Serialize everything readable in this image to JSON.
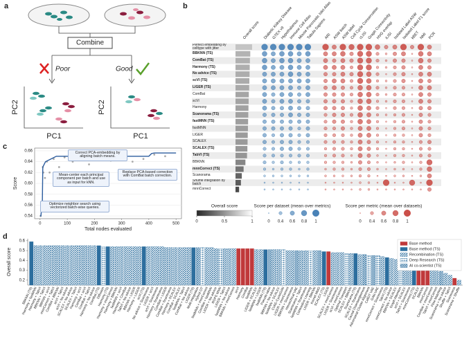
{
  "panel_labels": [
    "a",
    "b",
    "c",
    "d"
  ],
  "panel_a": {
    "combine": "Combine",
    "poor": "Poor",
    "good": "Good",
    "axis_labels": {
      "left_y": "PC2",
      "left_x": "PC1",
      "right_y": "PC2",
      "right_x": "PC1"
    }
  },
  "panel_b": {
    "column_headers": {
      "overall": "Overall score",
      "datasets": [
        "Diabetic Kidney Disease",
        "GTEX v9",
        "Hypothalamus",
        "Immune Cell Atlas",
        "Mouse Pancreatic Islet Atlas",
        "Tabula Sapiens"
      ],
      "metrics": [
        "ARI",
        "ASW batch",
        "ASW label",
        "Cell Cycle Conservation",
        "cLISI",
        "Graph Connectivity",
        "HVG overlap",
        "iLISI",
        "Isolated Label ASW",
        "Isolated Label F1 score",
        "kBET",
        "NMI",
        "PCR"
      ]
    },
    "dataset_color": "#3f7bb3",
    "metric_color": "#c8463f",
    "rows": [
      {
        "label": "Perfect embedding by celltype with jitter",
        "bold": false,
        "overall": 0.92,
        "datasets": [
          0.9,
          0.9,
          0.9,
          0.9,
          0.9,
          0.9
        ],
        "metrics": [
          0.9,
          0.6,
          0.9,
          0.8,
          0.9,
          0.9,
          0.7,
          0.5,
          0.6,
          0.9,
          0.5,
          0.9,
          0.6
        ]
      },
      {
        "label": "BBKNN (TS)",
        "bold": true,
        "overall": 0.82,
        "datasets": [
          0.7,
          0.6,
          0.7,
          0.7,
          0.6,
          0.7
        ],
        "metrics": [
          0.6,
          0.6,
          0.7,
          0.5,
          0.8,
          0.8,
          0.4,
          0.2,
          0.5,
          0.6,
          0.1,
          0.7,
          0.6
        ]
      },
      {
        "label": "ComBat (TS)",
        "bold": true,
        "overall": 0.8,
        "datasets": [
          0.7,
          0.6,
          0.7,
          0.7,
          0.6,
          0.6
        ],
        "metrics": [
          0.6,
          0.5,
          0.6,
          0.5,
          0.8,
          0.8,
          0.4,
          0.2,
          0.5,
          0.5,
          0.1,
          0.7,
          0.5
        ]
      },
      {
        "label": "Harmony (TS)",
        "bold": true,
        "overall": 0.79,
        "datasets": [
          0.7,
          0.6,
          0.6,
          0.7,
          0.6,
          0.6
        ],
        "metrics": [
          0.6,
          0.6,
          0.6,
          0.4,
          0.8,
          0.8,
          0.3,
          0.2,
          0.4,
          0.5,
          0.1,
          0.6,
          0.5
        ]
      },
      {
        "label": "No advice (TS)",
        "bold": true,
        "overall": 0.78,
        "datasets": [
          0.6,
          0.6,
          0.6,
          0.7,
          0.6,
          0.6
        ],
        "metrics": [
          0.5,
          0.5,
          0.6,
          0.5,
          0.8,
          0.7,
          0.4,
          0.1,
          0.4,
          0.5,
          0.1,
          0.6,
          0.6
        ]
      },
      {
        "label": "scVI (TS)",
        "bold": true,
        "overall": 0.77,
        "datasets": [
          0.6,
          0.6,
          0.6,
          0.6,
          0.6,
          0.6
        ],
        "metrics": [
          0.5,
          0.6,
          0.6,
          0.4,
          0.8,
          0.7,
          0.3,
          0.2,
          0.4,
          0.5,
          0.1,
          0.6,
          0.5
        ]
      },
      {
        "label": "LIGER (TS)",
        "bold": true,
        "overall": 0.76,
        "datasets": [
          0.6,
          0.6,
          0.6,
          0.6,
          0.5,
          0.6
        ],
        "metrics": [
          0.5,
          0.6,
          0.5,
          0.4,
          0.7,
          0.7,
          0.4,
          0.2,
          0.4,
          0.4,
          0.1,
          0.6,
          0.6
        ]
      },
      {
        "label": "ComBat",
        "bold": false,
        "overall": 0.74,
        "datasets": [
          0.6,
          0.5,
          0.6,
          0.6,
          0.5,
          0.6
        ],
        "metrics": [
          0.5,
          0.5,
          0.5,
          0.4,
          0.7,
          0.7,
          0.4,
          0.2,
          0.4,
          0.4,
          0.1,
          0.6,
          0.5
        ]
      },
      {
        "label": "scVI",
        "bold": false,
        "overall": 0.73,
        "datasets": [
          0.6,
          0.5,
          0.6,
          0.6,
          0.5,
          0.5
        ],
        "metrics": [
          0.5,
          0.5,
          0.5,
          0.3,
          0.7,
          0.7,
          0.3,
          0.2,
          0.4,
          0.4,
          0.1,
          0.6,
          0.5
        ]
      },
      {
        "label": "Harmony",
        "bold": false,
        "overall": 0.72,
        "datasets": [
          0.6,
          0.5,
          0.5,
          0.6,
          0.5,
          0.5
        ],
        "metrics": [
          0.5,
          0.5,
          0.5,
          0.3,
          0.7,
          0.6,
          0.4,
          0.1,
          0.4,
          0.4,
          0.1,
          0.5,
          0.5
        ]
      },
      {
        "label": "Scanorama (TS)",
        "bold": true,
        "overall": 0.71,
        "datasets": [
          0.5,
          0.5,
          0.5,
          0.6,
          0.5,
          0.5
        ],
        "metrics": [
          0.4,
          0.5,
          0.5,
          0.4,
          0.7,
          0.6,
          0.3,
          0.2,
          0.3,
          0.4,
          0.1,
          0.5,
          0.4
        ]
      },
      {
        "label": "fastMNN (TS)",
        "bold": true,
        "overall": 0.7,
        "datasets": [
          0.5,
          0.5,
          0.5,
          0.5,
          0.5,
          0.5
        ],
        "metrics": [
          0.4,
          0.5,
          0.5,
          0.3,
          0.7,
          0.6,
          0.3,
          0.1,
          0.3,
          0.4,
          0.1,
          0.5,
          0.4
        ]
      },
      {
        "label": "fastMNN",
        "bold": false,
        "overall": 0.69,
        "datasets": [
          0.5,
          0.5,
          0.5,
          0.5,
          0.4,
          0.5
        ],
        "metrics": [
          0.4,
          0.4,
          0.5,
          0.3,
          0.6,
          0.6,
          0.3,
          0.1,
          0.3,
          0.4,
          0.1,
          0.5,
          0.4
        ]
      },
      {
        "label": "LIGER",
        "bold": false,
        "overall": 0.68,
        "datasets": [
          0.5,
          0.4,
          0.5,
          0.5,
          0.4,
          0.5
        ],
        "metrics": [
          0.4,
          0.4,
          0.4,
          0.3,
          0.6,
          0.6,
          0.3,
          0.1,
          0.3,
          0.3,
          0.1,
          0.5,
          0.4
        ]
      },
      {
        "label": "SCALEX",
        "bold": false,
        "overall": 0.67,
        "datasets": [
          0.5,
          0.4,
          0.5,
          0.5,
          0.4,
          0.4
        ],
        "metrics": [
          0.4,
          0.4,
          0.4,
          0.3,
          0.6,
          0.5,
          0.3,
          0.1,
          0.3,
          0.3,
          0.1,
          0.4,
          0.5
        ]
      },
      {
        "label": "SCALEX (TS)",
        "bold": true,
        "overall": 0.66,
        "datasets": [
          0.4,
          0.4,
          0.5,
          0.5,
          0.4,
          0.4
        ],
        "metrics": [
          0.3,
          0.4,
          0.4,
          0.3,
          0.6,
          0.5,
          0.3,
          0.1,
          0.3,
          0.3,
          0.1,
          0.4,
          0.4
        ]
      },
      {
        "label": "TabVI (TS)",
        "bold": true,
        "overall": 0.64,
        "datasets": [
          0.4,
          0.4,
          0.4,
          0.4,
          0.4,
          0.4
        ],
        "metrics": [
          0.3,
          0.4,
          0.4,
          0.2,
          0.6,
          0.5,
          0.2,
          0.1,
          0.3,
          0.3,
          0.1,
          0.4,
          0.4
        ]
      },
      {
        "label": "BBKNN",
        "bold": false,
        "overall": 0.55,
        "datasets": [
          0.4,
          0.3,
          0.4,
          0.3,
          0.3,
          0.3
        ],
        "metrics": [
          0.3,
          0.3,
          0.3,
          0.2,
          0.5,
          0.4,
          0.2,
          0.1,
          0.2,
          0.3,
          0.1,
          0.3,
          0.8
        ]
      },
      {
        "label": "mnnCorrect (TS)",
        "bold": true,
        "overall": 0.45,
        "datasets": [
          0.3,
          0.2,
          0.3,
          0.3,
          0.2,
          0.3
        ],
        "metrics": [
          0.2,
          0.3,
          0.3,
          0.2,
          0.4,
          0.4,
          0.2,
          0.1,
          0.2,
          0.2,
          0.1,
          0.3,
          0.7
        ]
      },
      {
        "label": "Scanorama",
        "bold": false,
        "overall": 0.35,
        "datasets": [
          0.2,
          0.2,
          0.2,
          0.2,
          0.2,
          0.2
        ],
        "metrics": [
          0.2,
          0.2,
          0.2,
          0.2,
          0.3,
          0.3,
          0.1,
          0.1,
          0.2,
          0.2,
          0.1,
          0.2,
          0.6
        ]
      },
      {
        "label": "Shuffle integration by batch",
        "bold": false,
        "overall": 0.3,
        "datasets": [
          0.1,
          0.1,
          0.1,
          0.1,
          0.1,
          0.1
        ],
        "metrics": [
          0.1,
          0.1,
          0.1,
          0.1,
          0.2,
          0.2,
          0.1,
          0.9,
          0.1,
          0.1,
          0.8,
          0.1,
          0.9
        ]
      },
      {
        "label": "mnnCorrect",
        "bold": false,
        "overall": 0.2,
        "datasets": [
          0.1,
          0.1,
          0.1,
          0.1,
          0.1,
          0.1
        ],
        "metrics": [
          0.1,
          0.1,
          0.1,
          0.1,
          0.2,
          0.2,
          0.1,
          0.1,
          0.1,
          0.1,
          0.1,
          0.1,
          0.5
        ]
      }
    ],
    "legends": {
      "overall": {
        "title": "Overall score",
        "ticks": [
          0,
          0.5,
          1
        ]
      },
      "dataset": {
        "title": "Score per dataset (mean over metrics)",
        "values": [
          0,
          0.4,
          0.6,
          0.8,
          1
        ]
      },
      "metric": {
        "title": "Score per metric (mean over datasets)",
        "values": [
          0,
          0.4,
          0.6,
          0.8,
          1
        ]
      }
    }
  },
  "chart_data": [
    {
      "type": "line",
      "xlabel": "Total nodes evaluated",
      "ylabel": "Score",
      "x": [
        0,
        3,
        5,
        8,
        10,
        15,
        20,
        40,
        60,
        100,
        200,
        300,
        400,
        410,
        420,
        500
      ],
      "series": [
        {
          "color": "#2b5c9e",
          "values": [
            0.54,
            0.54,
            0.55,
            0.55,
            0.63,
            0.635,
            0.64,
            0.645,
            0.65,
            0.65,
            0.65,
            0.65,
            0.65,
            0.655,
            0.656,
            0.656
          ]
        }
      ],
      "points": {
        "color": "#a9a9a9",
        "x": [
          2,
          5,
          10,
          12,
          18,
          25,
          35,
          50,
          70,
          90,
          120,
          150,
          180,
          220,
          260,
          300,
          340,
          380,
          420,
          460
        ],
        "values": [
          0.54,
          0.55,
          0.63,
          0.62,
          0.61,
          0.64,
          0.62,
          0.645,
          0.63,
          0.648,
          0.64,
          0.646,
          0.635,
          0.648,
          0.642,
          0.649,
          0.64,
          0.645,
          0.653,
          0.65
        ]
      },
      "xlim": [
        -20,
        520
      ],
      "xticks": [
        0,
        100,
        200,
        300,
        400,
        500
      ],
      "ylim": [
        0.535,
        0.665
      ],
      "yticks": [
        0.54,
        0.56,
        0.58,
        {
          "value": 0.6,
          "label": "0.60"
        },
        0.62,
        0.64,
        0.66
      ],
      "annotations": [
        "Correct PCA-embedding by aligning batch means.",
        "Mean-center each principal component per batch and use as input for kNN.",
        "Optimize neighbor search using vectorized batch-wise queries.",
        "Replace PCA-based correction with ComBat batch correction."
      ]
    },
    {
      "type": "bar",
      "ylabel": "Overall score",
      "categories": [
        "BBKNN (TS)",
        "Harmony + fastMNN",
        "Harmony + TabVI",
        "BBKNN + TabVI",
        "BBKNN + scVI",
        "mnnCorrect + TabVI",
        "ComBat + BBKNN",
        "scVI + TabVI",
        "scVI + No advice",
        "SCALEX + No advice",
        "SCALEX + TabVI",
        "Harmony + scVI",
        "ComBat + scVI",
        "ComBat + TabVI",
        "Harmony + No advice",
        "ComBat (TS)",
        "Diffusion",
        "Harmony (TS)",
        "Harmony + mnnCorrect",
        "Harmony + BBKNN",
        "fastMNN + scVI",
        "Harmony + ComBat",
        "TabVI + No advice",
        "BBKNN + LIGER",
        "Harmony + LIGER",
        "scVI (TS)",
        "No advice + Scanorama",
        "LIGER + scVI",
        "scVI + Scanorama",
        "Harmony + Scanorama",
        "ComBat + LIGER",
        "ComBat + Scanorama",
        "Harmony + SCALEX",
        "ComBat + SCALEX",
        "fastMNN + TabVI",
        "ComBat + No advice",
        "LIGER (TS)",
        "Multi-integration",
        "Hybrid OT",
        "fastMNN + mnnCorrect",
        "ComBat + fastMNN",
        "LIGER + No advice",
        "ROPE MNN",
        "LIGER + TabVI",
        "fastMNN + No advice",
        "BBKNN + mnnCorrect",
        "scVI",
        "Harmony",
        "ComBat",
        "fastMNN",
        "LIGER + SCALEX",
        "fastMNN + LIGER",
        "fastMNN (TS)",
        "Pseudo-label",
        "BBKNN + No advice",
        "fastMNN + SCALEX",
        "CVAE-CycleGAN",
        "LIGER + mnnCorrect",
        "BBKNN + Scanorama",
        "Hierarchical VAE",
        "Scanorama + TabVI",
        "fastMNN + Scanorama",
        "Contrastive Learning",
        "LIGER + BBKNN",
        "Kernel MMD",
        "SCALEX (TS)",
        "LIGER",
        "SCALEX + mnnCorrect",
        "LIGER + Scanorama",
        "scVI + mnnCorrect",
        "Optimal Transport",
        "SCALEX + BBKNN",
        "Scanorama (TS)",
        "SCALEX + Scanorama",
        "Causal Disentanglement",
        "Adversarial Cluster Alignment",
        "CellOT VAE",
        "GAN-VAE",
        "mnnCorrect + Scanorama",
        "TabVI (TS)",
        "mnnCorrect + No advice",
        "BBKNN + SCALEX",
        "Graph Attention",
        "scVI + SCALEX",
        "TabVI + Scanorama",
        "mnnCorrect (TS)",
        "SCALEX",
        "BBKNN",
        "mnnCorrect",
        "ComBat + mnnCorrect",
        "TabVI + mnnCorrect",
        "Flow Matching",
        "Scanorama + No advice",
        "Shuffle + TabVI",
        "Scanorama",
        "Scanorama + Shuffle"
      ],
      "values": [
        0.59,
        0.55,
        0.55,
        0.55,
        0.55,
        0.55,
        0.55,
        0.55,
        0.55,
        0.55,
        0.55,
        0.55,
        0.55,
        0.55,
        0.55,
        0.55,
        0.54,
        0.54,
        0.54,
        0.54,
        0.54,
        0.54,
        0.54,
        0.54,
        0.54,
        0.54,
        0.54,
        0.54,
        0.54,
        0.54,
        0.53,
        0.53,
        0.53,
        0.53,
        0.53,
        0.53,
        0.53,
        0.53,
        0.53,
        0.53,
        0.53,
        0.52,
        0.52,
        0.52,
        0.52,
        0.52,
        0.52,
        0.52,
        0.52,
        0.52,
        0.51,
        0.51,
        0.51,
        0.51,
        0.51,
        0.51,
        0.51,
        0.5,
        0.5,
        0.5,
        0.5,
        0.5,
        0.5,
        0.5,
        0.5,
        0.49,
        0.49,
        0.48,
        0.48,
        0.48,
        0.47,
        0.47,
        0.47,
        0.46,
        0.46,
        0.45,
        0.45,
        0.45,
        0.44,
        0.43,
        0.42,
        0.41,
        0.4,
        0.38,
        0.36,
        0.34,
        0.32,
        0.31,
        0.3,
        0.3,
        0.3,
        0.29,
        0.27,
        0.25,
        0.22,
        0.2
      ],
      "groups": [
        1,
        2,
        2,
        2,
        2,
        2,
        2,
        2,
        2,
        2,
        2,
        2,
        2,
        2,
        2,
        1,
        3,
        1,
        2,
        2,
        2,
        2,
        2,
        2,
        2,
        1,
        2,
        2,
        2,
        2,
        2,
        2,
        2,
        2,
        2,
        2,
        1,
        4,
        3,
        2,
        2,
        2,
        3,
        2,
        2,
        2,
        0,
        0,
        0,
        0,
        2,
        2,
        1,
        4,
        2,
        2,
        3,
        2,
        2,
        4,
        2,
        2,
        3,
        2,
        4,
        1,
        0,
        2,
        2,
        2,
        3,
        2,
        1,
        2,
        4,
        3,
        4,
        3,
        2,
        1,
        2,
        2,
        3,
        2,
        2,
        1,
        0,
        0,
        0,
        2,
        2,
        4,
        2,
        2,
        0,
        2
      ],
      "legend": [
        {
          "name": "Base method",
          "color": "#c0393b",
          "pattern": "solid"
        },
        {
          "name": "Base method (TS)",
          "color": "#2c6e9e",
          "pattern": "solid"
        },
        {
          "name": "Recombination (TS)",
          "color": "#2c6e9e",
          "pattern": "hatch"
        },
        {
          "name": "Deep Research (TS)",
          "color": "#2c6e9e",
          "pattern": "dots"
        },
        {
          "name": "AI co-scientist (TS)",
          "color": "#2c6e9e",
          "pattern": "cross"
        }
      ],
      "ylim": [
        0.15,
        0.62
      ],
      "yticks": [
        0.2,
        0.3,
        0.4,
        0.5,
        0.6
      ]
    }
  ]
}
